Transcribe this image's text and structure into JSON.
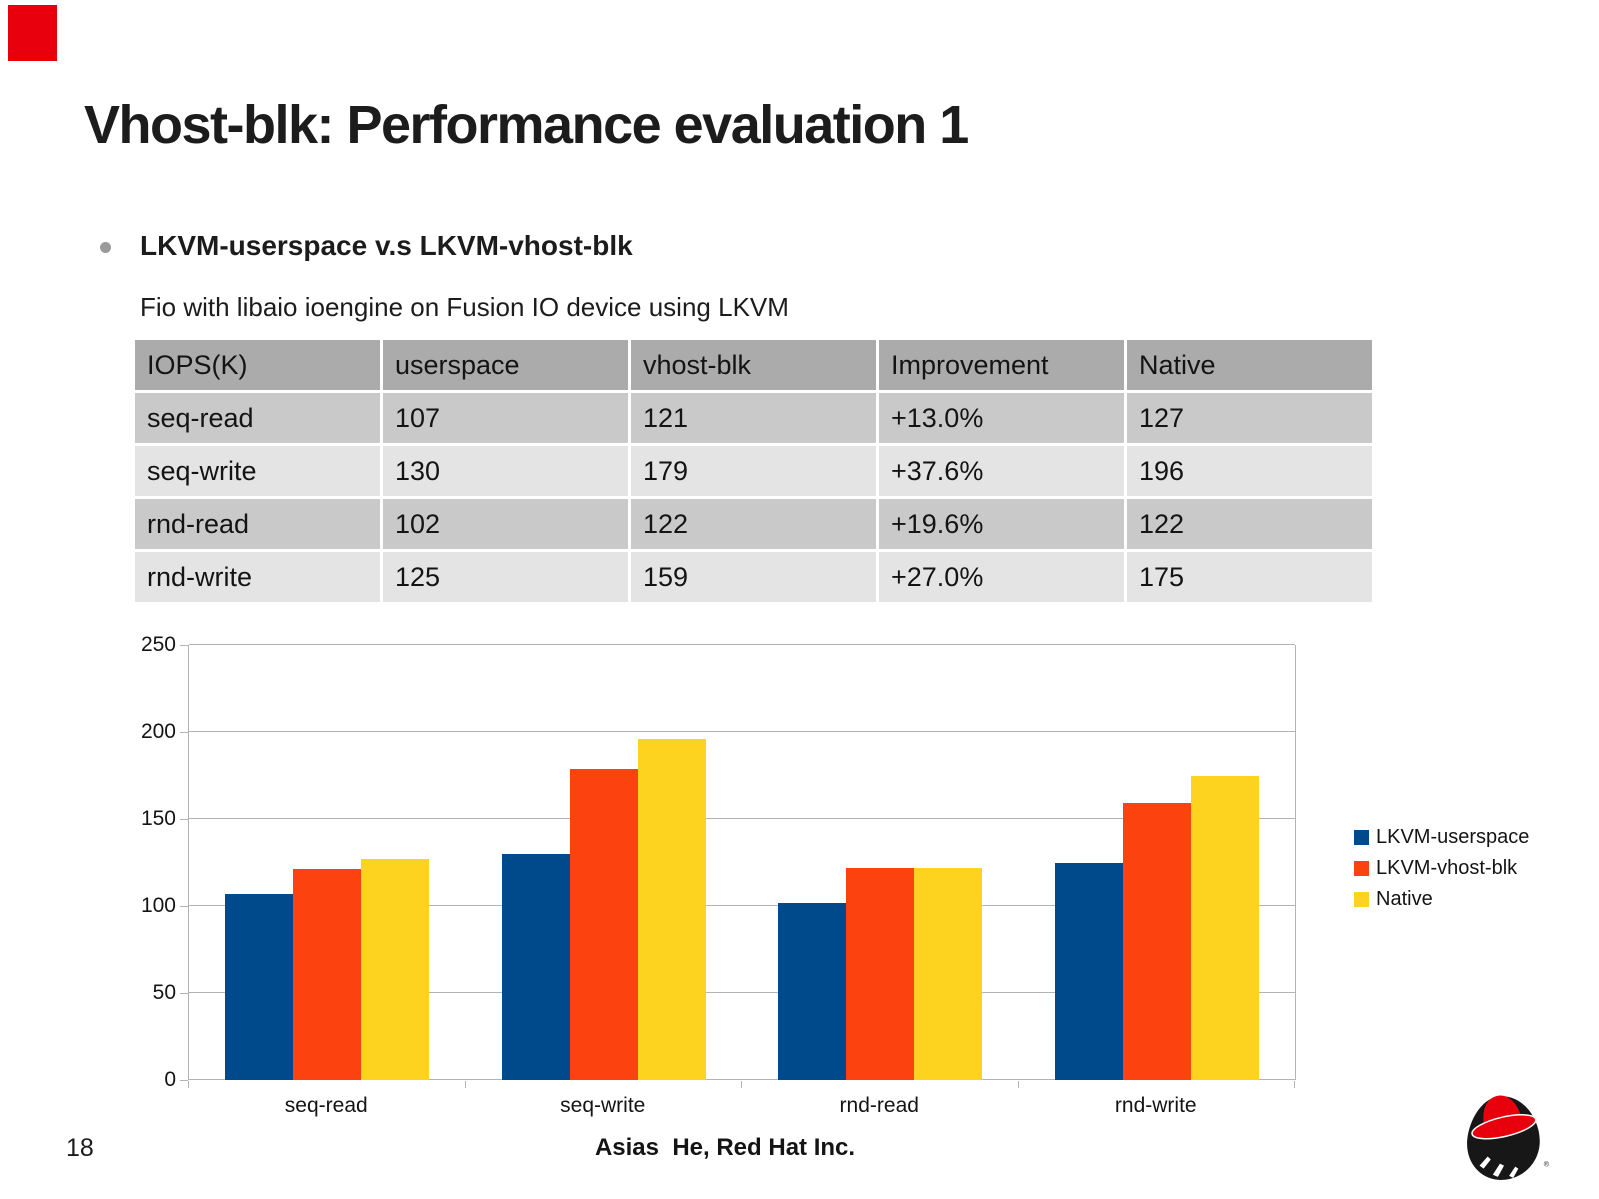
{
  "slide": {
    "title": "Vhost-blk: Performance evaluation 1",
    "bullet": "LKVM-userspace v.s LKVM-vhost-blk",
    "subtitle": "Fio with libaio ioengine on Fusion IO device using LKVM"
  },
  "table": {
    "headers": [
      "IOPS(K)",
      "userspace",
      "vhost-blk",
      "Improvement",
      "Native"
    ],
    "rows": [
      [
        "seq-read",
        "107",
        "121",
        "+13.0%",
        "127"
      ],
      [
        "seq-write",
        "130",
        "179",
        "+37.6%",
        "196"
      ],
      [
        "rnd-read",
        "102",
        "122",
        "+19.6%",
        "122"
      ],
      [
        "rnd-write",
        "125",
        "159",
        "+27.0%",
        "175"
      ]
    ]
  },
  "chart_data": {
    "type": "bar",
    "title": "",
    "xlabel": "",
    "ylabel": "",
    "categories": [
      "seq-read",
      "seq-write",
      "rnd-read",
      "rnd-write"
    ],
    "series": [
      {
        "name": "LKVM-userspace",
        "color": "#004a8c",
        "values": [
          107,
          130,
          102,
          125
        ]
      },
      {
        "name": "LKVM-vhost-blk",
        "color": "#fc420e",
        "values": [
          121,
          179,
          122,
          159
        ]
      },
      {
        "name": "Native",
        "color": "#fed320",
        "values": [
          127,
          196,
          122,
          175
        ]
      }
    ],
    "ylim": [
      0,
      250
    ],
    "yticks": [
      0,
      50,
      100,
      150,
      200,
      250
    ],
    "grid": true,
    "legend_position": "right"
  },
  "footer": {
    "page_number": "18",
    "author": "Asias  He, Red Hat Inc."
  },
  "colors": {
    "brand_red": "#e8000d",
    "table_header_bg": "#ababab",
    "table_row_odd_bg": "#c9c9c9",
    "table_row_even_bg": "#e4e4e4",
    "grid_line": "#b3b3b3"
  },
  "icons": {
    "bullet": "circle",
    "logo": "redhat-shadowman"
  }
}
